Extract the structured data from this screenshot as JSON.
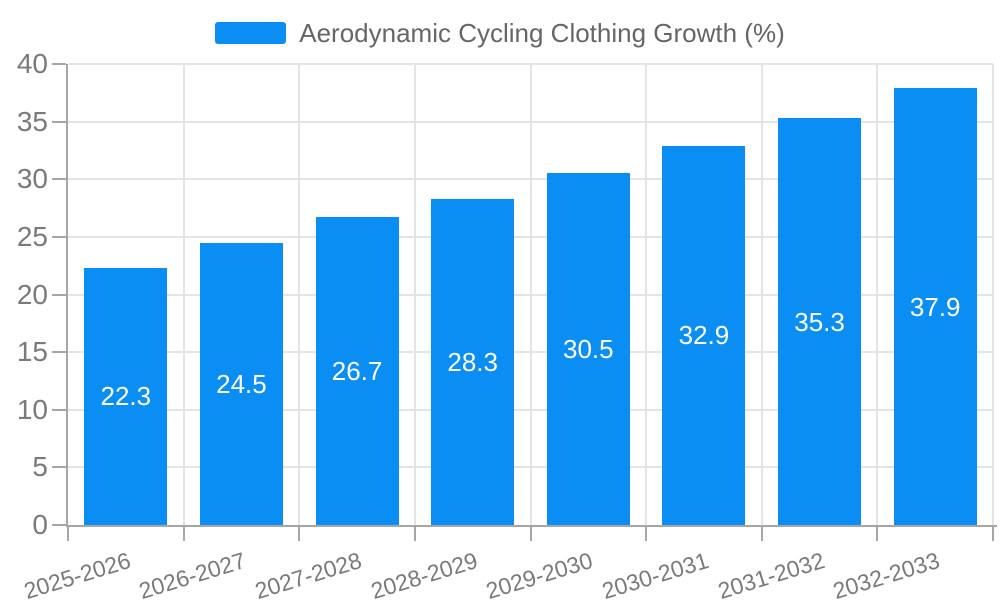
{
  "legend": {
    "label": "Aerodynamic Cycling Clothing Growth (%)"
  },
  "chart_data": {
    "type": "bar",
    "title": "Aerodynamic Cycling Clothing Growth (%)",
    "categories": [
      "2025-2026",
      "2026-2027",
      "2027-2028",
      "2028-2029",
      "2029-2030",
      "2030-2031",
      "2031-2032",
      "2032-2033"
    ],
    "values": [
      22.3,
      24.5,
      26.7,
      28.3,
      30.5,
      32.9,
      35.3,
      37.9
    ],
    "value_labels": [
      "22.3",
      "24.5",
      "26.7",
      "28.3",
      "30.5",
      "32.9",
      "35.3",
      "37.9"
    ],
    "xlabel": "",
    "ylabel": "",
    "ylim": [
      0,
      40
    ],
    "yticks": [
      0,
      5,
      10,
      15,
      20,
      25,
      30,
      35,
      40
    ],
    "grid": true,
    "legend_position": "top-center",
    "value_label_position": "inside-middle",
    "x_label_rotation_deg": -17,
    "colors": {
      "bar": "#0A8EF4",
      "axis": "#A6A6A6",
      "grid": "#E4E4E4",
      "axis_label": "#7A7A7A",
      "legend_text": "#666666",
      "value_label": "#FFFFFF",
      "background": "#FFFFFF"
    }
  }
}
